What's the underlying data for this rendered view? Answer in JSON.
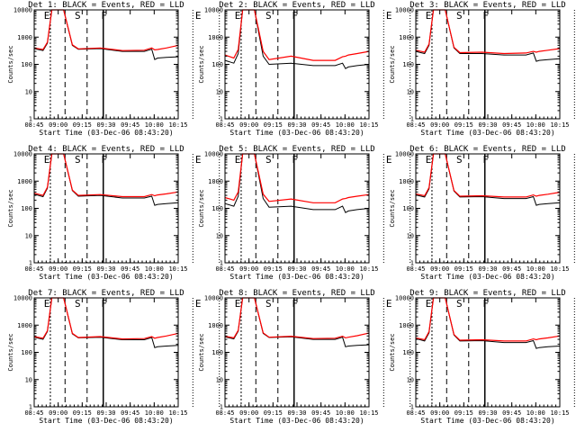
{
  "chart_data": [
    {
      "type": "line",
      "title": "Det 1:  BLACK = Events, RED = LLD",
      "xlabel": "Start Time (03-Dec-06 08:43:20)",
      "ylabel": "Counts/sec",
      "yscale": "log",
      "ylim": [
        1,
        10000
      ],
      "x_ticks": [
        "08:45",
        "09:00",
        "09:15",
        "09:30",
        "09:45",
        "10:00",
        "10:15"
      ],
      "y_ticks": [
        "1",
        "10",
        "100",
        "1000",
        "10000"
      ],
      "markers": [
        "E",
        "S",
        "F",
        "E"
      ],
      "series": [
        {
          "name": "Events",
          "color": "#000000",
          "x": [
            0,
            6,
            9,
            12,
            16,
            20,
            26,
            30,
            45,
            60,
            75,
            80,
            82,
            84,
            90,
            98
          ],
          "y": [
            380,
            320,
            600,
            10000,
            10000,
            10000,
            500,
            360,
            380,
            300,
            300,
            360,
            150,
            170,
            180,
            190
          ]
        },
        {
          "name": "LLD",
          "color": "#ff0000",
          "x": [
            0,
            6,
            9,
            12,
            16,
            20,
            26,
            30,
            45,
            60,
            75,
            80,
            82,
            84,
            90,
            98
          ],
          "y": [
            400,
            350,
            650,
            10000,
            10000,
            10000,
            520,
            370,
            400,
            320,
            330,
            400,
            340,
            350,
            400,
            500
          ]
        }
      ]
    },
    {
      "type": "line",
      "title": "Det 2:  BLACK = Events, RED = LLD",
      "xlabel": "Start Time (03-Dec-06 08:43:20)",
      "ylabel": "Counts/sec",
      "yscale": "log",
      "ylim": [
        1,
        10000
      ],
      "x_ticks": [
        "08:45",
        "09:00",
        "09:15",
        "09:30",
        "09:45",
        "10:00",
        "10:15"
      ],
      "y_ticks": [
        "1",
        "10",
        "100",
        "1000",
        "10000"
      ],
      "markers": [
        "E",
        "S",
        "F",
        "E"
      ],
      "series": [
        {
          "name": "Events",
          "color": "#000000",
          "x": [
            0,
            6,
            9,
            12,
            16,
            20,
            26,
            30,
            45,
            60,
            75,
            80,
            82,
            84,
            90,
            98
          ],
          "y": [
            140,
            110,
            250,
            10000,
            10000,
            10000,
            200,
            100,
            110,
            90,
            90,
            110,
            70,
            80,
            90,
            100
          ]
        },
        {
          "name": "LLD",
          "color": "#ff0000",
          "x": [
            0,
            6,
            9,
            12,
            16,
            20,
            26,
            30,
            45,
            60,
            75,
            80,
            82,
            84,
            90,
            98
          ],
          "y": [
            220,
            170,
            350,
            10000,
            10000,
            10000,
            300,
            150,
            200,
            140,
            140,
            190,
            200,
            220,
            250,
            300
          ]
        }
      ]
    },
    {
      "type": "line",
      "title": "Det 3:  BLACK = Events, RED = LLD",
      "xlabel": "Start Time (03-Dec-06 08:43:20)",
      "ylabel": "Counts/sec",
      "yscale": "log",
      "ylim": [
        1,
        10000
      ],
      "x_ticks": [
        "08:45",
        "09:00",
        "09:15",
        "09:30",
        "09:45",
        "10:00",
        "10:15"
      ],
      "y_ticks": [
        "1",
        "10",
        "100",
        "1000",
        "10000"
      ],
      "markers": [
        "E",
        "S",
        "F",
        "E"
      ],
      "series": [
        {
          "name": "Events",
          "color": "#000000",
          "x": [
            0,
            6,
            9,
            12,
            16,
            20,
            26,
            30,
            45,
            60,
            75,
            80,
            82,
            84,
            90,
            98
          ],
          "y": [
            300,
            250,
            500,
            10000,
            10000,
            10000,
            400,
            250,
            250,
            220,
            220,
            260,
            130,
            140,
            150,
            160
          ]
        },
        {
          "name": "LLD",
          "color": "#ff0000",
          "x": [
            0,
            6,
            9,
            12,
            16,
            20,
            26,
            30,
            45,
            60,
            75,
            80,
            82,
            84,
            90,
            98
          ],
          "y": [
            330,
            280,
            550,
            10000,
            10000,
            10000,
            420,
            270,
            280,
            250,
            260,
            300,
            280,
            300,
            330,
            380
          ]
        }
      ]
    },
    {
      "type": "line",
      "title": "Det 4:  BLACK = Events, RED = LLD",
      "xlabel": "Start Time (03-Dec-06 08:43:20)",
      "ylabel": "Counts/sec",
      "yscale": "log",
      "ylim": [
        1,
        10000
      ],
      "x_ticks": [
        "08:45",
        "09:00",
        "09:15",
        "09:30",
        "09:45",
        "10:00",
        "10:15"
      ],
      "y_ticks": [
        "1",
        "10",
        "100",
        "1000",
        "10000"
      ],
      "markers": [
        "E",
        "S",
        "F",
        "E"
      ],
      "series": [
        {
          "name": "Events",
          "color": "#000000",
          "x": [
            0,
            6,
            9,
            12,
            16,
            20,
            26,
            30,
            45,
            60,
            75,
            80,
            82,
            84,
            90,
            98
          ],
          "y": [
            330,
            270,
            550,
            10000,
            10000,
            10000,
            450,
            280,
            300,
            240,
            240,
            280,
            130,
            140,
            150,
            160
          ]
        },
        {
          "name": "LLD",
          "color": "#ff0000",
          "x": [
            0,
            6,
            9,
            12,
            16,
            20,
            26,
            30,
            45,
            60,
            75,
            80,
            82,
            84,
            90,
            98
          ],
          "y": [
            360,
            300,
            600,
            10000,
            10000,
            10000,
            470,
            300,
            320,
            270,
            270,
            320,
            290,
            310,
            340,
            400
          ]
        }
      ]
    },
    {
      "type": "line",
      "title": "Det 5:  BLACK = Events, RED = LLD",
      "xlabel": "Start Time (03-Dec-06 08:43:20)",
      "ylabel": "Counts/sec",
      "yscale": "log",
      "ylim": [
        1,
        10000
      ],
      "x_ticks": [
        "08:45",
        "09:00",
        "09:15",
        "09:30",
        "09:45",
        "10:00",
        "10:15"
      ],
      "y_ticks": [
        "1",
        "10",
        "100",
        "1000",
        "10000"
      ],
      "markers": [
        "E",
        "S",
        "F",
        "E"
      ],
      "series": [
        {
          "name": "Events",
          "color": "#000000",
          "x": [
            0,
            6,
            9,
            12,
            16,
            20,
            26,
            30,
            45,
            60,
            75,
            80,
            82,
            84,
            90,
            98
          ],
          "y": [
            150,
            120,
            280,
            10000,
            10000,
            10000,
            230,
            110,
            120,
            90,
            90,
            120,
            70,
            80,
            90,
            100
          ]
        },
        {
          "name": "LLD",
          "color": "#ff0000",
          "x": [
            0,
            6,
            9,
            12,
            16,
            20,
            26,
            30,
            45,
            60,
            75,
            80,
            82,
            84,
            90,
            98
          ],
          "y": [
            250,
            200,
            400,
            10000,
            10000,
            10000,
            330,
            180,
            220,
            160,
            160,
            220,
            230,
            250,
            280,
            320
          ]
        }
      ]
    },
    {
      "type": "line",
      "title": "Det 6:  BLACK = Events, RED = LLD",
      "xlabel": "Start Time (03-Dec-06 08:43:20)",
      "ylabel": "Counts/sec",
      "yscale": "log",
      "ylim": [
        1,
        10000
      ],
      "x_ticks": [
        "08:45",
        "09:00",
        "09:15",
        "09:30",
        "09:45",
        "10:00",
        "10:15"
      ],
      "y_ticks": [
        "1",
        "10",
        "100",
        "1000",
        "10000"
      ],
      "markers": [
        "E",
        "S",
        "F",
        "E"
      ],
      "series": [
        {
          "name": "Events",
          "color": "#000000",
          "x": [
            0,
            6,
            9,
            12,
            16,
            20,
            26,
            30,
            45,
            60,
            75,
            80,
            82,
            84,
            90,
            98
          ],
          "y": [
            310,
            260,
            520,
            10000,
            10000,
            10000,
            430,
            260,
            270,
            230,
            230,
            270,
            130,
            140,
            150,
            160
          ]
        },
        {
          "name": "LLD",
          "color": "#ff0000",
          "x": [
            0,
            6,
            9,
            12,
            16,
            20,
            26,
            30,
            45,
            60,
            75,
            80,
            82,
            84,
            90,
            98
          ],
          "y": [
            340,
            290,
            570,
            10000,
            10000,
            10000,
            450,
            280,
            290,
            260,
            260,
            310,
            280,
            300,
            330,
            390
          ]
        }
      ]
    },
    {
      "type": "line",
      "title": "Det 7:  BLACK = Events, RED = LLD",
      "xlabel": "Start Time (03-Dec-06 08:43:20)",
      "ylabel": "Counts/sec",
      "yscale": "log",
      "ylim": [
        1,
        10000
      ],
      "x_ticks": [
        "08:45",
        "09:00",
        "09:15",
        "09:30",
        "09:45",
        "10:00",
        "10:15"
      ],
      "y_ticks": [
        "1",
        "10",
        "100",
        "1000",
        "10000"
      ],
      "markers": [
        "E",
        "S",
        "F",
        "E"
      ],
      "series": [
        {
          "name": "Events",
          "color": "#000000",
          "x": [
            0,
            6,
            9,
            12,
            16,
            20,
            26,
            30,
            45,
            60,
            75,
            80,
            82,
            84,
            90,
            98
          ],
          "y": [
            360,
            300,
            580,
            10000,
            10000,
            10000,
            480,
            340,
            360,
            290,
            290,
            350,
            150,
            160,
            170,
            180
          ]
        },
        {
          "name": "LLD",
          "color": "#ff0000",
          "x": [
            0,
            6,
            9,
            12,
            16,
            20,
            26,
            30,
            45,
            60,
            75,
            80,
            82,
            84,
            90,
            98
          ],
          "y": [
            380,
            330,
            620,
            10000,
            10000,
            10000,
            500,
            350,
            380,
            310,
            320,
            380,
            330,
            350,
            400,
            500
          ]
        }
      ]
    },
    {
      "type": "line",
      "title": "Det 8:  BLACK = Events, RED = LLD",
      "xlabel": "Start Time (03-Dec-06 08:43:20)",
      "ylabel": "Counts/sec",
      "yscale": "log",
      "ylim": [
        1,
        10000
      ],
      "x_ticks": [
        "08:45",
        "09:00",
        "09:15",
        "09:30",
        "09:45",
        "10:00",
        "10:15"
      ],
      "y_ticks": [
        "1",
        "10",
        "100",
        "1000",
        "10000"
      ],
      "markers": [
        "E",
        "S",
        "F",
        "E"
      ],
      "series": [
        {
          "name": "Events",
          "color": "#000000",
          "x": [
            0,
            6,
            9,
            12,
            16,
            20,
            26,
            30,
            45,
            60,
            75,
            80,
            82,
            84,
            90,
            98
          ],
          "y": [
            370,
            310,
            600,
            10000,
            10000,
            10000,
            500,
            350,
            370,
            300,
            300,
            360,
            160,
            170,
            180,
            190
          ]
        },
        {
          "name": "LLD",
          "color": "#ff0000",
          "x": [
            0,
            6,
            9,
            12,
            16,
            20,
            26,
            30,
            45,
            60,
            75,
            80,
            82,
            84,
            90,
            98
          ],
          "y": [
            390,
            340,
            640,
            10000,
            10000,
            10000,
            520,
            360,
            390,
            320,
            330,
            390,
            340,
            360,
            410,
            510
          ]
        }
      ]
    },
    {
      "type": "line",
      "title": "Det 9:  BLACK = Events, RED = LLD",
      "xlabel": "Start Time (03-Dec-06 08:43:20)",
      "ylabel": "Counts/sec",
      "yscale": "log",
      "ylim": [
        1,
        10000
      ],
      "x_ticks": [
        "08:45",
        "09:00",
        "09:15",
        "09:30",
        "09:45",
        "10:00",
        "10:15"
      ],
      "y_ticks": [
        "1",
        "10",
        "100",
        "1000",
        "10000"
      ],
      "markers": [
        "E",
        "S",
        "F",
        "E"
      ],
      "series": [
        {
          "name": "Events",
          "color": "#000000",
          "x": [
            0,
            6,
            9,
            12,
            16,
            20,
            26,
            30,
            45,
            60,
            75,
            80,
            82,
            84,
            90,
            98
          ],
          "y": [
            320,
            260,
            520,
            10000,
            10000,
            10000,
            430,
            260,
            270,
            230,
            230,
            270,
            140,
            150,
            160,
            170
          ]
        },
        {
          "name": "LLD",
          "color": "#ff0000",
          "x": [
            0,
            6,
            9,
            12,
            16,
            20,
            26,
            30,
            45,
            60,
            75,
            80,
            82,
            84,
            90,
            98
          ],
          "y": [
            340,
            290,
            570,
            10000,
            10000,
            10000,
            450,
            280,
            290,
            260,
            260,
            310,
            290,
            310,
            340,
            400
          ]
        }
      ]
    }
  ]
}
